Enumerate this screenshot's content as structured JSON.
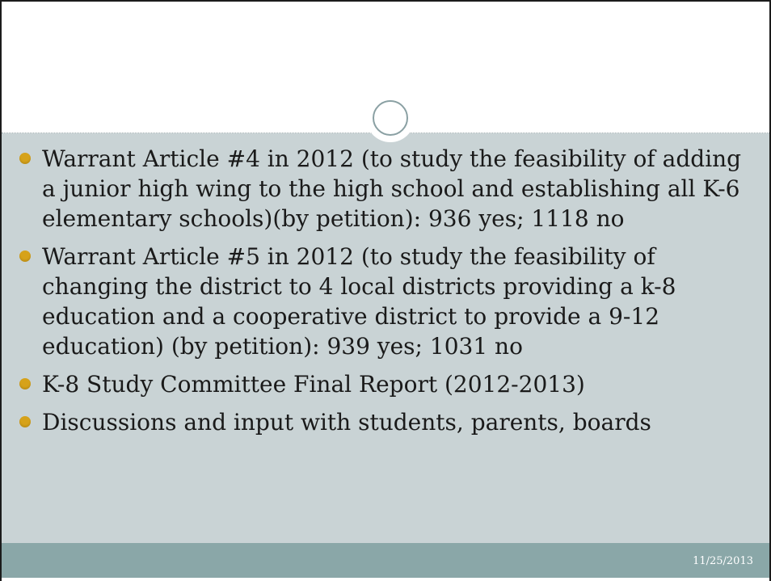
{
  "slide": {
    "bullets": [
      "Warrant Article #4 in 2012 (to study the feasibility of adding a junior high wing to the high school and establishing all K-6 elementary schools)(by petition): 936 yes; 1118 no",
      "Warrant Article #5 in 2012 (to study the feasibility of changing the district to 4 local districts providing a k-8 education and a cooperative district to provide a 9-12 education) (by petition):  939 yes; 1031 no",
      "K-8 Study Committee Final Report (2012-2013)",
      "Discussions and input with students, parents, boards"
    ],
    "footer_date": "11/25/2013"
  },
  "colors": {
    "content_bg": "#c9d3d5",
    "footer_bg": "#8aa7a8",
    "bullet_dot": "#d6a21a"
  },
  "icons": {
    "slide_ornament": "double-circle-icon",
    "bullet": "dot-bullet-icon"
  }
}
